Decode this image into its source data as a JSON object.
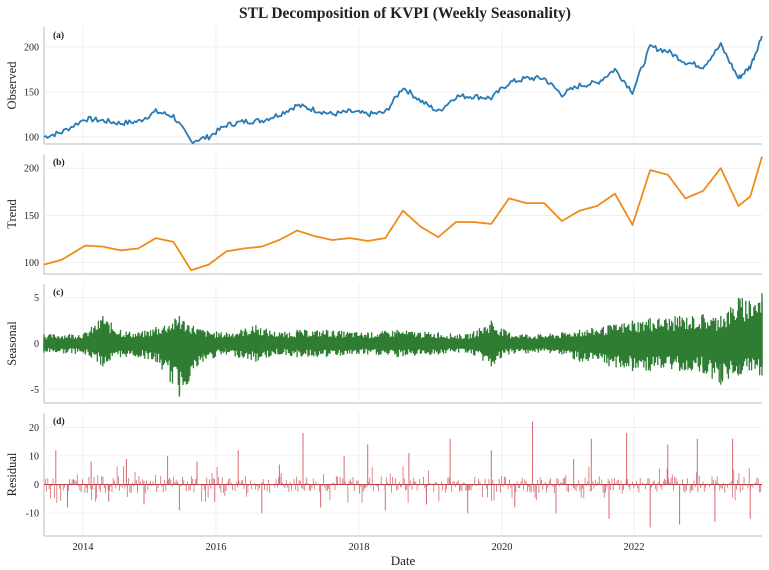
{
  "chart_data": {
    "type": "line",
    "title": "STL Decomposition of KVPI (Weekly Seasonality)",
    "xlabel": "Date",
    "x_ticks": [
      "2014",
      "2016",
      "2018",
      "2020",
      "2022"
    ],
    "x_range": [
      "2013-06-01",
      "2023-08-01"
    ],
    "grid": true,
    "panels": [
      {
        "tag": "(a)",
        "ylabel": "Observed",
        "color": "#2a7ab5",
        "kind": "line",
        "ylim": [
          92,
          222
        ],
        "yticks": [
          "100",
          "150",
          "200"
        ],
        "x": [
          "2013-06",
          "2013-09",
          "2014-01",
          "2014-04",
          "2014-07",
          "2014-10",
          "2015-01",
          "2015-04",
          "2015-07",
          "2015-10",
          "2016-01",
          "2016-04",
          "2016-07",
          "2016-10",
          "2017-01",
          "2017-04",
          "2017-07",
          "2017-10",
          "2018-01",
          "2018-04",
          "2018-07",
          "2018-10",
          "2019-01",
          "2019-04",
          "2019-07",
          "2019-10",
          "2020-01",
          "2020-04",
          "2020-07",
          "2020-10",
          "2021-01",
          "2021-04",
          "2021-07",
          "2021-10",
          "2022-01",
          "2022-04",
          "2022-07",
          "2022-10",
          "2023-01",
          "2023-04",
          "2023-06",
          "2023-08"
        ],
        "y": [
          100,
          105,
          120,
          118,
          115,
          117,
          128,
          123,
          95,
          100,
          113,
          117,
          118,
          125,
          135,
          130,
          125,
          128,
          125,
          127,
          155,
          140,
          128,
          145,
          145,
          143,
          160,
          165,
          165,
          147,
          157,
          160,
          175,
          150,
          200,
          195,
          183,
          178,
          202,
          165,
          178,
          212
        ]
      },
      {
        "tag": "(b)",
        "ylabel": "Trend",
        "color": "#f08a1c",
        "kind": "line",
        "ylim": [
          88,
          215
        ],
        "yticks": [
          "100",
          "150",
          "200"
        ],
        "x": [
          "2013-06",
          "2013-09",
          "2014-01",
          "2014-04",
          "2014-07",
          "2014-10",
          "2015-01",
          "2015-04",
          "2015-07",
          "2015-10",
          "2016-01",
          "2016-04",
          "2016-07",
          "2016-10",
          "2017-01",
          "2017-04",
          "2017-07",
          "2017-10",
          "2018-01",
          "2018-04",
          "2018-07",
          "2018-10",
          "2019-01",
          "2019-04",
          "2019-07",
          "2019-10",
          "2020-01",
          "2020-04",
          "2020-07",
          "2020-10",
          "2021-01",
          "2021-04",
          "2021-07",
          "2021-10",
          "2022-01",
          "2022-04",
          "2022-07",
          "2022-10",
          "2023-01",
          "2023-04",
          "2023-06",
          "2023-08"
        ],
        "y": [
          98,
          103,
          118,
          117,
          113,
          115,
          126,
          122,
          92,
          98,
          112,
          115,
          117,
          124,
          134,
          128,
          124,
          126,
          123,
          126,
          155,
          138,
          127,
          143,
          143,
          141,
          168,
          163,
          163,
          144,
          155,
          160,
          173,
          140,
          198,
          193,
          168,
          176,
          200,
          160,
          170,
          212
        ]
      },
      {
        "tag": "(c)",
        "ylabel": "Seasonal",
        "color": "#2e7d32",
        "kind": "band",
        "ylim": [
          -6.5,
          6.5
        ],
        "yticks": [
          "5",
          "0",
          "-5"
        ],
        "x": [
          "2013-06",
          "2014-01",
          "2014-04",
          "2014-07",
          "2014-10",
          "2015-01",
          "2015-05",
          "2015-09",
          "2016-01",
          "2016-06",
          "2016-10",
          "2017-01",
          "2017-06",
          "2018-01",
          "2018-06",
          "2019-01",
          "2019-06",
          "2019-10",
          "2020-01",
          "2020-06",
          "2020-10",
          "2021-01",
          "2021-06",
          "2021-10",
          "2022-01",
          "2022-06",
          "2022-10",
          "2023-01",
          "2023-04",
          "2023-08"
        ],
        "upper": [
          1.0,
          1.2,
          3.0,
          1.5,
          1.2,
          1.8,
          3.0,
          1.5,
          1.2,
          2.0,
          1.2,
          1.5,
          1.5,
          1.2,
          1.5,
          1.2,
          1.0,
          2.5,
          1.2,
          1.0,
          1.2,
          1.5,
          2.0,
          2.5,
          2.8,
          3.0,
          3.2,
          3.0,
          5.0,
          5.5
        ],
        "lower": [
          -1.0,
          -1.2,
          -2.5,
          -1.5,
          -1.5,
          -2.0,
          -5.8,
          -2.0,
          -1.2,
          -2.0,
          -1.2,
          -1.5,
          -1.5,
          -1.2,
          -1.5,
          -1.2,
          -1.0,
          -2.5,
          -1.2,
          -1.0,
          -1.2,
          -2.0,
          -2.5,
          -3.0,
          -3.0,
          -3.0,
          -3.2,
          -4.5,
          -3.5,
          -3.5
        ]
      },
      {
        "tag": "(d)",
        "ylabel": "Residual",
        "color": "#d46a6f",
        "kind": "spikes",
        "ylim": [
          -18,
          25
        ],
        "yticks": [
          "20",
          "10",
          "0",
          "-10"
        ],
        "x": [
          "2013-08",
          "2013-10",
          "2014-02",
          "2014-05",
          "2014-08",
          "2014-11",
          "2015-03",
          "2015-05",
          "2015-08",
          "2015-11",
          "2016-03",
          "2016-07",
          "2016-10",
          "2017-02",
          "2017-05",
          "2017-09",
          "2018-01",
          "2018-04",
          "2018-08",
          "2018-11",
          "2019-03",
          "2019-06",
          "2019-10",
          "2020-02",
          "2020-05",
          "2020-09",
          "2020-12",
          "2021-03",
          "2021-06",
          "2021-09",
          "2022-01",
          "2022-04",
          "2022-06",
          "2022-09",
          "2022-12",
          "2023-03",
          "2023-06"
        ],
        "v": [
          12,
          -8,
          8,
          -6,
          9,
          -7,
          10,
          -9,
          8,
          -6,
          12,
          -10,
          7,
          18,
          -8,
          10,
          14,
          -9,
          11,
          -7,
          16,
          -10,
          12,
          -8,
          22,
          -10,
          9,
          16,
          -12,
          18,
          -15,
          14,
          -14,
          16,
          -13,
          16,
          -12
        ]
      }
    ]
  }
}
